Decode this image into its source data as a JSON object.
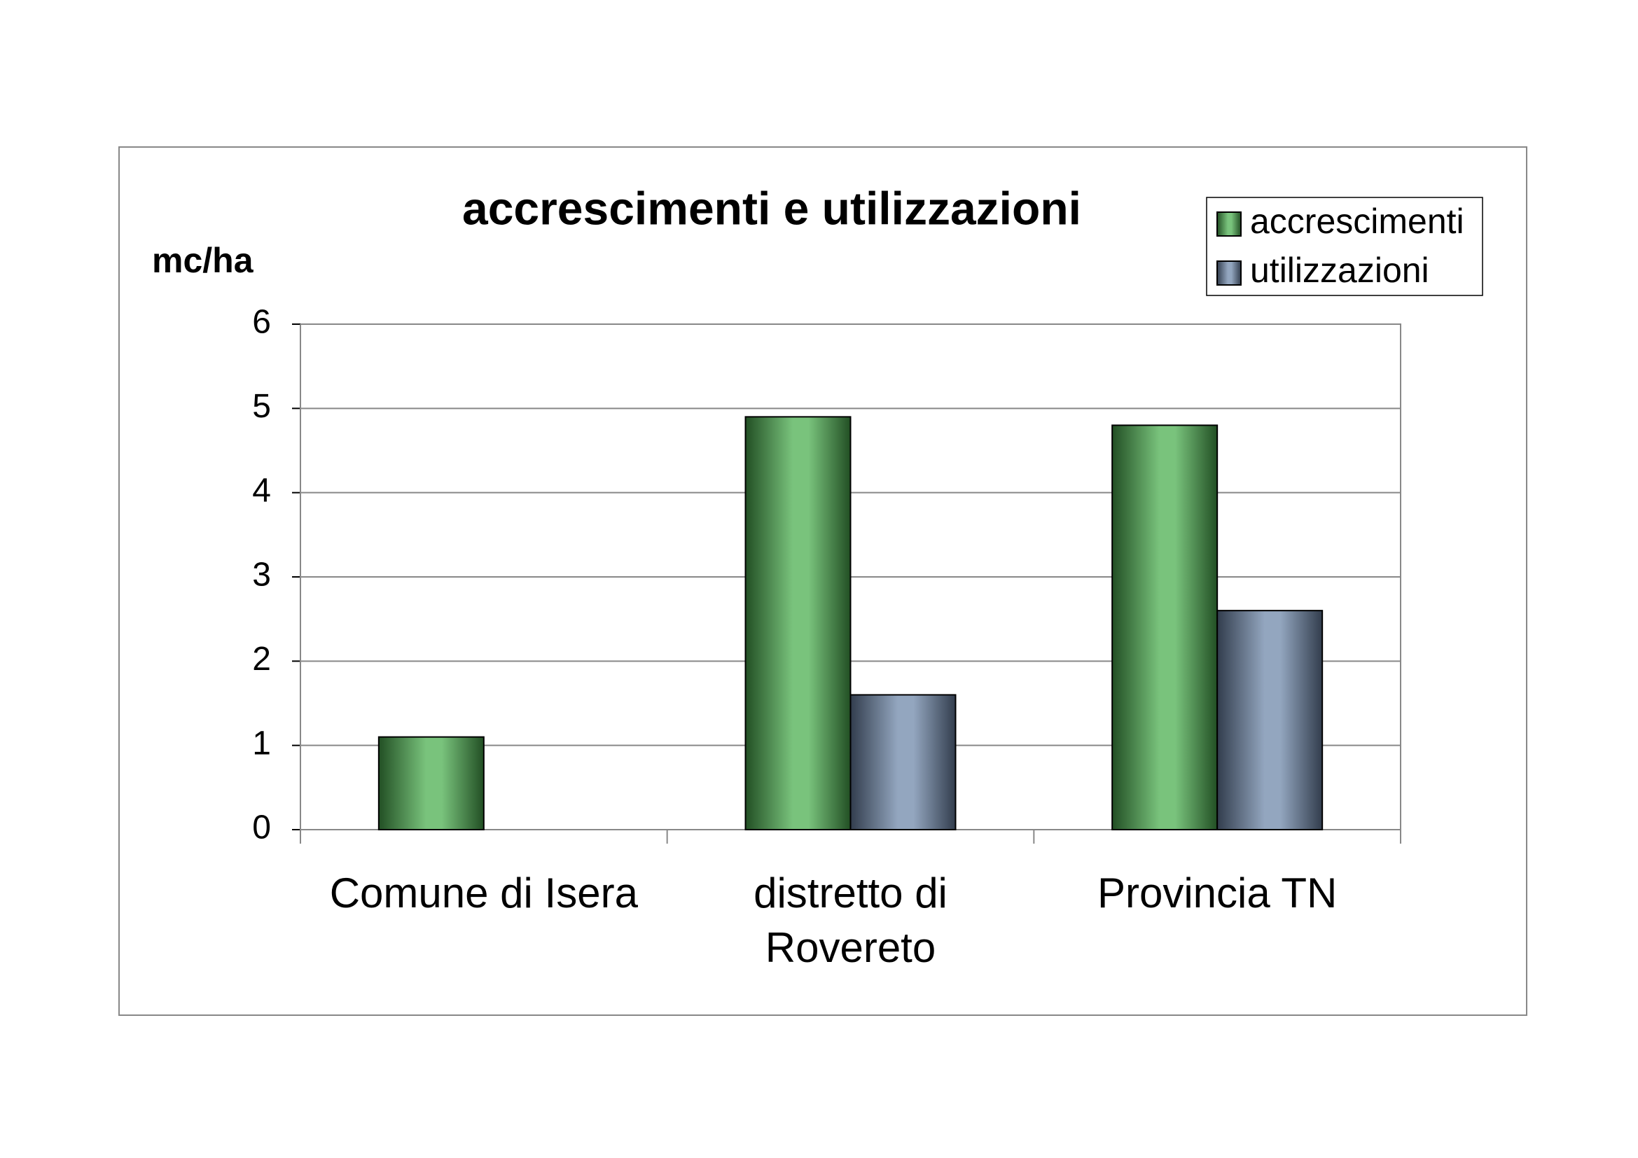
{
  "chart_data": {
    "type": "bar",
    "title": "accrescimenti e utilizzazioni",
    "y_label": "mc/ha",
    "categories": [
      "Comune di Isera",
      "distretto di Rovereto",
      "Provincia TN"
    ],
    "series": [
      {
        "name": "accrescimenti",
        "color": "#4caf50",
        "values": [
          1.1,
          4.9,
          4.8
        ]
      },
      {
        "name": "utilizzazioni",
        "color": "#6f88aa",
        "values": [
          null,
          1.6,
          2.6
        ]
      }
    ],
    "ylim": [
      0,
      6
    ],
    "yticks": [
      0,
      1,
      2,
      3,
      4,
      5,
      6
    ],
    "grid": true,
    "legend": "top-right"
  }
}
